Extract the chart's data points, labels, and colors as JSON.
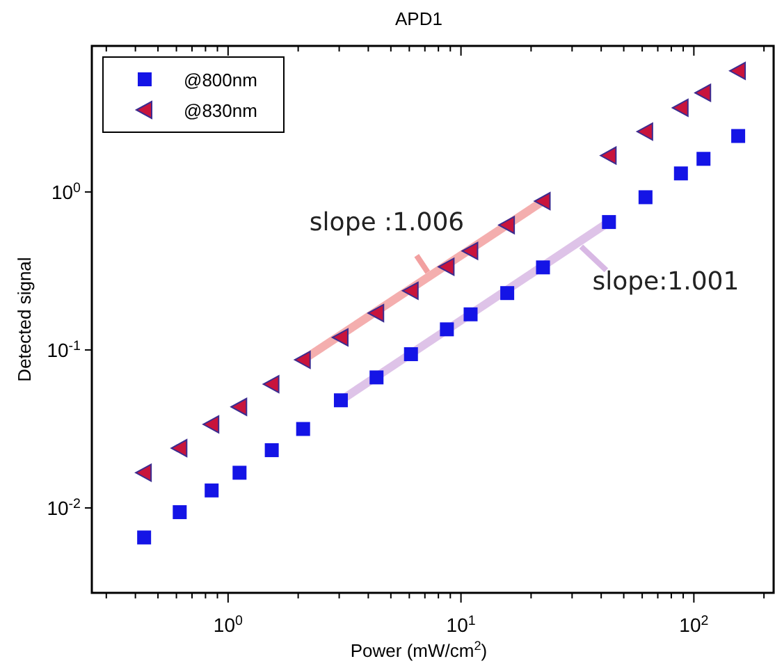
{
  "chart_data": {
    "type": "scatter",
    "title": "APD1",
    "xlabel": "Power (mW/cm$^{2}$)",
    "ylabel": "Detected signal",
    "log": "xy",
    "grid": false,
    "legend": "top left",
    "x": [
      0.436,
      0.62,
      0.85,
      1.12,
      1.54,
      2.1,
      3.05,
      4.34,
      6.1,
      8.7,
      11.0,
      15.8,
      22.5,
      43.2,
      62,
      88,
      110,
      155
    ],
    "series": [
      {
        "name": "@800nm",
        "marker": "square",
        "color": "#1414e6",
        "values": [
          0.0065,
          0.0094,
          0.0129,
          0.0167,
          0.0232,
          0.0316,
          0.048,
          0.067,
          0.094,
          0.135,
          0.168,
          0.229,
          0.333,
          0.645,
          0.926,
          1.31,
          1.62,
          2.26
        ]
      },
      {
        "name": "@830nm",
        "marker": "triangle",
        "color": "#c8143c",
        "values": [
          0.0167,
          0.0239,
          0.0338,
          0.0436,
          0.0607,
          0.0866,
          0.12,
          0.171,
          0.237,
          0.336,
          0.423,
          0.617,
          0.875,
          1.7,
          2.41,
          3.41,
          4.24,
          5.84
        ]
      },
      {
        "type": "line",
        "line_style": "solid",
        "color": "#f2a0a0",
        "x": [
          2.1,
          22.5
        ],
        "values": [
          0.0866,
          0.875
        ]
      },
      {
        "type": "line",
        "line_style": "solid",
        "color": "#d8b8e4",
        "x": [
          3.05,
          43.2
        ],
        "values": [
          0.048,
          0.645
        ]
      }
    ],
    "annotations": [
      {
        "text": "slope :1.006",
        "x": 7.2,
        "y": 0.31
      },
      {
        "text": "slope:1.001",
        "x": 29.4,
        "y": 0.52
      }
    ],
    "xlim": [
      0.26,
      220
    ],
    "ylim": [
      0.0029,
      8.4
    ],
    "xticks": [
      {
        "value": 0.3,
        "label": null
      },
      {
        "value": 0.4,
        "label": null
      },
      {
        "value": 0.5,
        "label": null
      },
      {
        "value": 0.6,
        "label": null
      },
      {
        "value": 0.7,
        "label": null
      },
      {
        "value": 0.8,
        "label": null
      },
      {
        "value": 0.9,
        "label": null
      },
      {
        "value": 1,
        "label": "10$^{0}$"
      },
      {
        "value": 2,
        "label": null
      },
      {
        "value": 3,
        "label": null
      },
      {
        "value": 4,
        "label": null
      },
      {
        "value": 5,
        "label": null
      },
      {
        "value": 6,
        "label": null
      },
      {
        "value": 7,
        "label": null
      },
      {
        "value": 8,
        "label": null
      },
      {
        "value": 9,
        "label": null
      },
      {
        "value": 10,
        "label": "10$^{1}$"
      },
      {
        "value": 20,
        "label": null
      },
      {
        "value": 30,
        "label": null
      },
      {
        "value": 40,
        "label": null
      },
      {
        "value": 50,
        "label": null
      },
      {
        "value": 60,
        "label": null
      },
      {
        "value": 70,
        "label": null
      },
      {
        "value": 80,
        "label": null
      },
      {
        "value": 90,
        "label": null
      },
      {
        "value": 100,
        "label": "10$^{2}$"
      },
      {
        "value": 200,
        "label": null
      }
    ],
    "yticks": [
      {
        "value": 0.01,
        "label": "10$^{-2}$"
      },
      {
        "value": 0.1,
        "label": "10$^{-1}$"
      },
      {
        "value": 1,
        "label": "10$^{0}$"
      }
    ]
  }
}
